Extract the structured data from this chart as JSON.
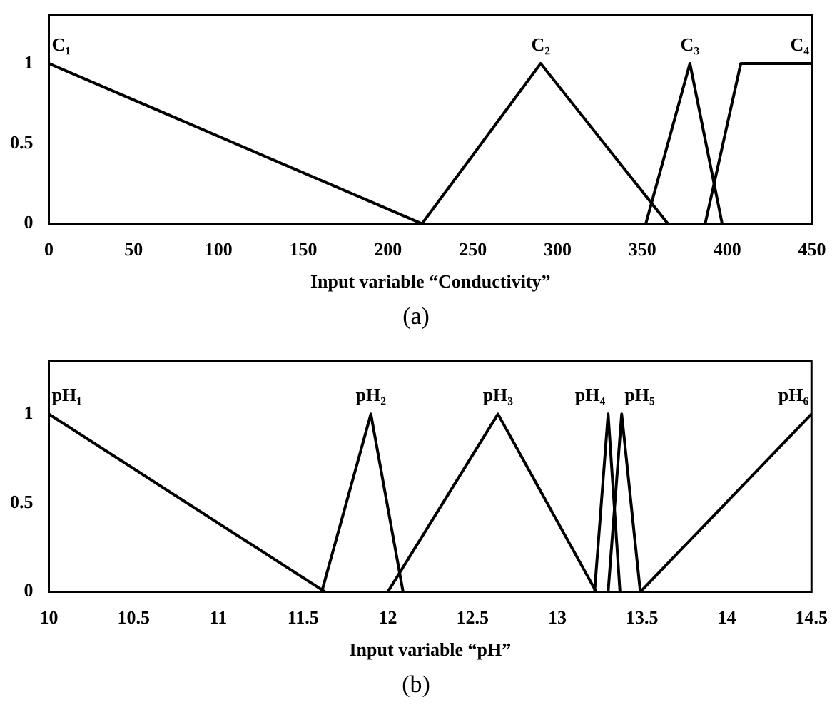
{
  "chart_data": [
    {
      "type": "line",
      "xlabel": "Input variable “Conductivity”",
      "xlim": [
        0,
        450
      ],
      "xticks": [
        0,
        50,
        100,
        150,
        200,
        250,
        300,
        350,
        400,
        450
      ],
      "ylim": [
        0,
        1.3
      ],
      "yticks": [
        0,
        0.5,
        1
      ],
      "grid": false,
      "legend": false,
      "marker": "none",
      "line_style": "solid",
      "annotations": [
        "(a)"
      ],
      "series": [
        {
          "name": "C₁",
          "color": "#000000",
          "x": [
            0,
            220
          ],
          "values": [
            1,
            0
          ]
        },
        {
          "name": "C₂",
          "color": "#000000",
          "x": [
            220,
            290,
            365
          ],
          "values": [
            0,
            1,
            0
          ]
        },
        {
          "name": "C₃",
          "color": "#000000",
          "x": [
            352,
            378,
            397
          ],
          "values": [
            0,
            1,
            0
          ]
        },
        {
          "name": "C₄",
          "color": "#000000",
          "x": [
            387,
            408,
            450
          ],
          "values": [
            0,
            1,
            1
          ]
        }
      ]
    },
    {
      "type": "line",
      "xlabel": "Input variable “pH”",
      "xlim": [
        10,
        14.5
      ],
      "xticks": [
        10,
        10.5,
        11,
        11.5,
        12,
        12.5,
        13,
        13.5,
        14,
        14.5
      ],
      "ylim": [
        0,
        1.3
      ],
      "yticks": [
        0,
        0.5,
        1
      ],
      "grid": false,
      "legend": false,
      "marker": "none",
      "line_style": "solid",
      "annotations": [
        "(b)"
      ],
      "series": [
        {
          "name": "pH₁",
          "color": "#000000",
          "x": [
            10,
            11.63
          ],
          "values": [
            1,
            0
          ]
        },
        {
          "name": "pH₂",
          "color": "#000000",
          "x": [
            11.61,
            11.9,
            12.09
          ],
          "values": [
            0,
            1,
            0
          ]
        },
        {
          "name": "pH₃",
          "color": "#000000",
          "x": [
            12,
            12.65,
            13.23
          ],
          "values": [
            0,
            1,
            0
          ]
        },
        {
          "name": "pH₄",
          "color": "#000000",
          "x": [
            13.22,
            13.3,
            13.37
          ],
          "values": [
            0,
            1,
            0
          ]
        },
        {
          "name": "pH₅",
          "color": "#000000",
          "x": [
            13.3,
            13.38,
            13.49
          ],
          "values": [
            0,
            1,
            0
          ]
        },
        {
          "name": "pH₆",
          "color": "#000000",
          "x": [
            13.49,
            14.5
          ],
          "values": [
            0,
            1
          ]
        }
      ]
    }
  ]
}
